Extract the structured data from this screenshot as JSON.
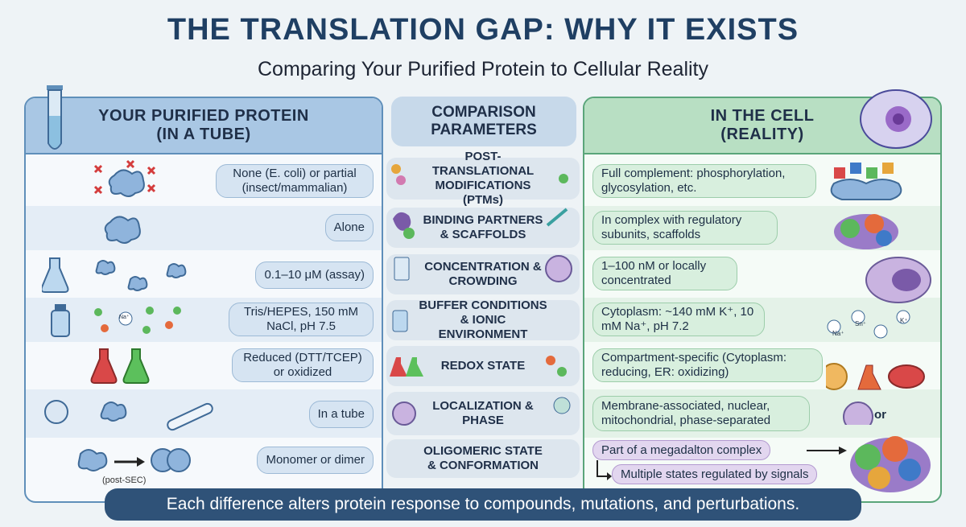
{
  "title": "THE TRANSLATION GAP: WHY IT EXISTS",
  "subtitle": "Comparing Your Purified Protein to Cellular Reality",
  "left_header": [
    "YOUR PURIFIED PROTEIN",
    "(IN A TUBE)"
  ],
  "mid_header": [
    "COMPARISON",
    "PARAMETERS"
  ],
  "right_header": [
    "IN THE CELL",
    "(REALITY)"
  ],
  "rows": [
    {
      "param": "POST-TRANSLATIONAL MODIFICATIONS (PTMs)",
      "tube": "None (E. coli) or partial (insect/mammalian)",
      "cell": "Full complement: phosphorylation, glycosylation, etc."
    },
    {
      "param": "BINDING PARTNERS & SCAFFOLDS",
      "tube": "Alone",
      "cell": "In complex with regulatory subunits, scaffolds"
    },
    {
      "param": "CONCENTRATION & CROWDING",
      "tube": "0.1–10 μM (assay)",
      "cell": "1–100 nM or locally concentrated"
    },
    {
      "param": "BUFFER CONDITIONS & IONIC ENVIRONMENT",
      "tube": "Tris/HEPES, 150 mM NaCl, pH 7.5",
      "cell": "Cytoplasm: ~140 mM K⁺, 10 mM Na⁺, pH 7.2"
    },
    {
      "param": "REDOX STATE",
      "tube": "Reduced (DTT/TCEP) or oxidized",
      "cell": "Compartment-specific (Cytoplasm: reducing, ER: oxidizing)"
    },
    {
      "param": "LOCALIZATION & PHASE",
      "tube": "In a tube",
      "cell": "Membrane-associated, nuclear, mitochondrial, phase-separated"
    },
    {
      "param": "OLIGOMERIC STATE & CONFORMATION",
      "tube": "Monomer or dimer",
      "cell": "Part of a megadalton complex"
    }
  ],
  "extra_cell": "Multiple states regulated by signals",
  "post_sec": "(post-SEC)",
  "or_label": "or",
  "ion_labels": {
    "na": "Na⁺",
    "k": "K⁺",
    "sn": "Sn⁺"
  },
  "footer": "Each difference alters protein response to compounds, mutations, and perturbations."
}
